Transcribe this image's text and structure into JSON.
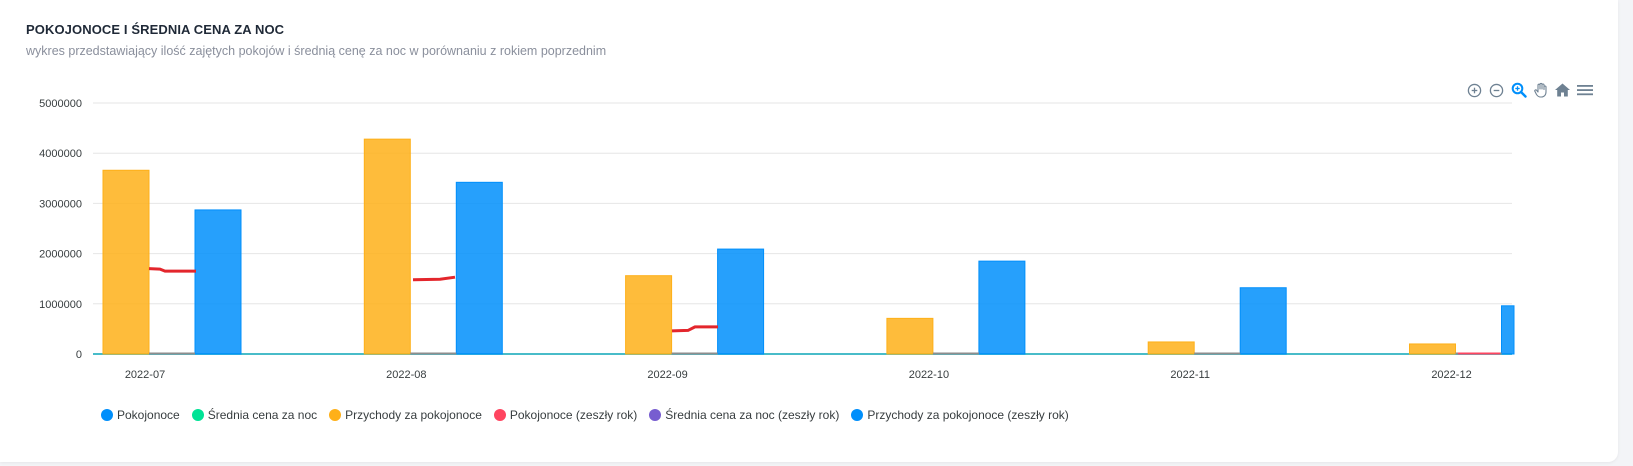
{
  "header": {
    "title": "POKOJONOCE I ŚREDNIA CENA ZA NOC",
    "subtitle": "wykres przedstawiający ilość zajętych pokojów i średnią cenę za noc w porównaniu z rokiem poprzednim"
  },
  "toolbar": {
    "icons": [
      "zoom-in-icon",
      "zoom-out-icon",
      "zoom-selection-icon",
      "pan-hand-icon",
      "reset-home-icon",
      "menu-icon"
    ],
    "active_color": "#008ffb",
    "icon_color": "#6e8192"
  },
  "chart_data": {
    "type": "bar",
    "categories": [
      "2022-07",
      "2022-08",
      "2022-09",
      "2022-10",
      "2022-11",
      "2022-12"
    ],
    "y_ticks": [
      "5000000",
      "4000000",
      "3000000",
      "2000000",
      "1000000",
      "0"
    ],
    "ylim": [
      0,
      5000000
    ],
    "grid": true,
    "legend_position": "bottom-left",
    "series": [
      {
        "name": "Pokojonoce",
        "kind": "bar",
        "color": "#008ffb",
        "values": [
          0,
          0,
          0,
          0,
          0,
          0
        ]
      },
      {
        "name": "Średnia cena za noc",
        "kind": "line",
        "color": "#00e396",
        "values": [
          0,
          0,
          0,
          0,
          0,
          0
        ]
      },
      {
        "name": "Przychody za pokojonoce",
        "kind": "bar",
        "color": "#feb019",
        "values": [
          3660000,
          4280000,
          1560000,
          710000,
          240000,
          200000
        ]
      },
      {
        "name": "Pokojonoce (zeszły rok)",
        "kind": "line",
        "color": "#ff4560",
        "values": [
          0,
          0,
          0,
          0,
          0,
          0
        ]
      },
      {
        "name": "Średnia cena za noc (zeszły rok)",
        "kind": "line",
        "color": "#775dd0",
        "values": [
          0,
          0,
          0,
          0,
          0,
          0
        ]
      },
      {
        "name": "Przychody za pokojonoce (zeszły rok)",
        "kind": "bar",
        "color": "#008ffb",
        "values": [
          2870000,
          3420000,
          2090000,
          1850000,
          1320000,
          960000
        ]
      }
    ],
    "red_line_color": "#e3262c"
  }
}
